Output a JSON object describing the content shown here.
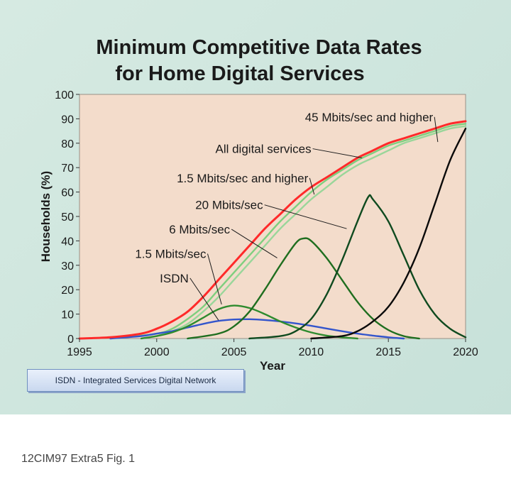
{
  "chart_data": {
    "type": "line",
    "title_lines": [
      "Minimum Competitive Data Rates",
      "for Home Digital Services"
    ],
    "xlabel": "Year",
    "ylabel": "Households (%)",
    "xlim": [
      1995,
      2020
    ],
    "ylim": [
      0,
      100
    ],
    "x_ticks": [
      1995,
      2000,
      2005,
      2010,
      2015,
      2020
    ],
    "y_ticks": [
      0,
      10,
      20,
      30,
      40,
      50,
      60,
      70,
      80,
      90,
      100
    ],
    "grid": false,
    "plot_background": "#f3dccb",
    "series": [
      {
        "name": "1.5 Mbits/sec and higher",
        "color": "#ff2a2a",
        "points": [
          [
            1995,
            0
          ],
          [
            1997,
            0.5
          ],
          [
            1999,
            2
          ],
          [
            2000,
            4
          ],
          [
            2001,
            7
          ],
          [
            2002,
            11
          ],
          [
            2003,
            17
          ],
          [
            2004,
            24
          ],
          [
            2005,
            31
          ],
          [
            2006,
            38
          ],
          [
            2007,
            45
          ],
          [
            2008,
            51
          ],
          [
            2009,
            57
          ],
          [
            2010,
            62
          ],
          [
            2011,
            66
          ],
          [
            2012,
            70
          ],
          [
            2013,
            74
          ],
          [
            2014,
            77
          ],
          [
            2015,
            80
          ],
          [
            2016,
            82
          ],
          [
            2017,
            84
          ],
          [
            2018,
            86
          ],
          [
            2019,
            88
          ],
          [
            2020,
            89
          ]
        ]
      },
      {
        "name": "All digital services",
        "color": "#7ecf7e",
        "points": [
          [
            1998,
            0.5
          ],
          [
            2000,
            2
          ],
          [
            2001,
            4
          ],
          [
            2002,
            8
          ],
          [
            2003,
            13
          ],
          [
            2004,
            20
          ],
          [
            2005,
            27
          ],
          [
            2006,
            34
          ],
          [
            2007,
            41
          ],
          [
            2008,
            48
          ],
          [
            2009,
            54
          ],
          [
            2010,
            60
          ],
          [
            2011,
            65
          ],
          [
            2012,
            69
          ],
          [
            2013,
            73
          ],
          [
            2014,
            76
          ],
          [
            2015,
            79
          ],
          [
            2016,
            81
          ],
          [
            2017,
            83
          ],
          [
            2018,
            85
          ],
          [
            2019,
            87
          ],
          [
            2020,
            88
          ]
        ]
      },
      {
        "name": "",
        "color": "#9ad69a",
        "points": [
          [
            2000,
            1
          ],
          [
            2001,
            3
          ],
          [
            2002,
            6
          ],
          [
            2003,
            11
          ],
          [
            2004,
            17
          ],
          [
            2005,
            24
          ],
          [
            2006,
            31
          ],
          [
            2007,
            38
          ],
          [
            2008,
            45
          ],
          [
            2009,
            51
          ],
          [
            2010,
            57
          ],
          [
            2011,
            62
          ],
          [
            2012,
            67
          ],
          [
            2013,
            71
          ],
          [
            2014,
            74
          ],
          [
            2015,
            77
          ],
          [
            2016,
            80
          ],
          [
            2017,
            82
          ],
          [
            2018,
            84
          ],
          [
            2019,
            86
          ],
          [
            2020,
            87
          ]
        ]
      },
      {
        "name": "ISDN",
        "color": "#3355cc",
        "points": [
          [
            1997,
            0
          ],
          [
            1999,
            1
          ],
          [
            2000,
            2
          ],
          [
            2001,
            3
          ],
          [
            2002,
            4.5
          ],
          [
            2003,
            6
          ],
          [
            2004,
            7.2
          ],
          [
            2005,
            7.8
          ],
          [
            2006,
            7.9
          ],
          [
            2007,
            7.6
          ],
          [
            2008,
            7
          ],
          [
            2009,
            6.2
          ],
          [
            2010,
            5.2
          ],
          [
            2011,
            4.1
          ],
          [
            2012,
            3
          ],
          [
            2013,
            2
          ],
          [
            2014,
            1.2
          ],
          [
            2015,
            0.5
          ],
          [
            2016,
            0
          ]
        ]
      },
      {
        "name": "1.5 Mbits/sec",
        "color": "#2e8b2e",
        "points": [
          [
            1999,
            0
          ],
          [
            2000,
            1
          ],
          [
            2001,
            2.5
          ],
          [
            2002,
            5
          ],
          [
            2003,
            8.5
          ],
          [
            2004,
            12
          ],
          [
            2005,
            13.5
          ],
          [
            2006,
            12.5
          ],
          [
            2007,
            10
          ],
          [
            2008,
            7
          ],
          [
            2009,
            4.5
          ],
          [
            2010,
            2.5
          ],
          [
            2011,
            1.2
          ],
          [
            2012,
            0.5
          ],
          [
            2013,
            0
          ]
        ]
      },
      {
        "name": "6 Mbits/sec",
        "color": "#1f6e1f",
        "points": [
          [
            2002,
            0
          ],
          [
            2004,
            2
          ],
          [
            2005,
            5
          ],
          [
            2006,
            11
          ],
          [
            2007,
            20
          ],
          [
            2008,
            30
          ],
          [
            2009,
            39
          ],
          [
            2009.5,
            41
          ],
          [
            2010,
            40
          ],
          [
            2011,
            33
          ],
          [
            2012,
            24
          ],
          [
            2013,
            15
          ],
          [
            2014,
            8
          ],
          [
            2015,
            3.5
          ],
          [
            2016,
            1
          ],
          [
            2017,
            0
          ]
        ]
      },
      {
        "name": "20 Mbits/sec",
        "color": "#0f4a1f",
        "points": [
          [
            2006,
            0
          ],
          [
            2008,
            1
          ],
          [
            2009,
            3
          ],
          [
            2010,
            8
          ],
          [
            2011,
            18
          ],
          [
            2012,
            32
          ],
          [
            2013,
            48
          ],
          [
            2013.7,
            58
          ],
          [
            2014,
            57
          ],
          [
            2015,
            48
          ],
          [
            2016,
            34
          ],
          [
            2017,
            20
          ],
          [
            2018,
            10
          ],
          [
            2019,
            4
          ],
          [
            2020,
            0.5
          ]
        ]
      },
      {
        "name": "45 Mbits/sec and higher",
        "color": "#0a0a0a",
        "points": [
          [
            2010,
            0
          ],
          [
            2012,
            1
          ],
          [
            2013,
            3
          ],
          [
            2014,
            7
          ],
          [
            2015,
            13
          ],
          [
            2016,
            23
          ],
          [
            2017,
            37
          ],
          [
            2018,
            55
          ],
          [
            2019,
            73
          ],
          [
            2020,
            86
          ]
        ]
      }
    ],
    "annotations": [
      {
        "text": "45 Mbits/sec and higher",
        "text_at": [
          2009.6,
          89
        ],
        "anchor": "start",
        "point": [
          2018.2,
          80.5
        ]
      },
      {
        "text": "All digital services",
        "text_at": [
          2003.8,
          76
        ],
        "anchor": "start",
        "point": [
          2013.3,
          74
        ]
      },
      {
        "text": "1.5 Mbits/sec and higher",
        "text_at": [
          2001.3,
          64
        ],
        "anchor": "start",
        "point": [
          2010.2,
          59
        ]
      },
      {
        "text": "20 Mbits/sec",
        "text_at": [
          2002.5,
          53
        ],
        "anchor": "start",
        "point": [
          2012.3,
          45
        ]
      },
      {
        "text": "6 Mbits/sec",
        "text_at": [
          2000.8,
          43
        ],
        "anchor": "start",
        "point": [
          2007.8,
          33
        ]
      },
      {
        "text": "1.5 Mbits/sec",
        "text_at": [
          1998.6,
          33
        ],
        "anchor": "start",
        "point": [
          2004.2,
          14
        ]
      },
      {
        "text": "ISDN",
        "text_at": [
          2000.2,
          23
        ],
        "anchor": "start",
        "point": [
          2004.0,
          7.5
        ]
      }
    ]
  },
  "footnote": "ISDN - Integrated Services Digital Network",
  "caption": "12CIM97 Extra5 Fig. 1"
}
